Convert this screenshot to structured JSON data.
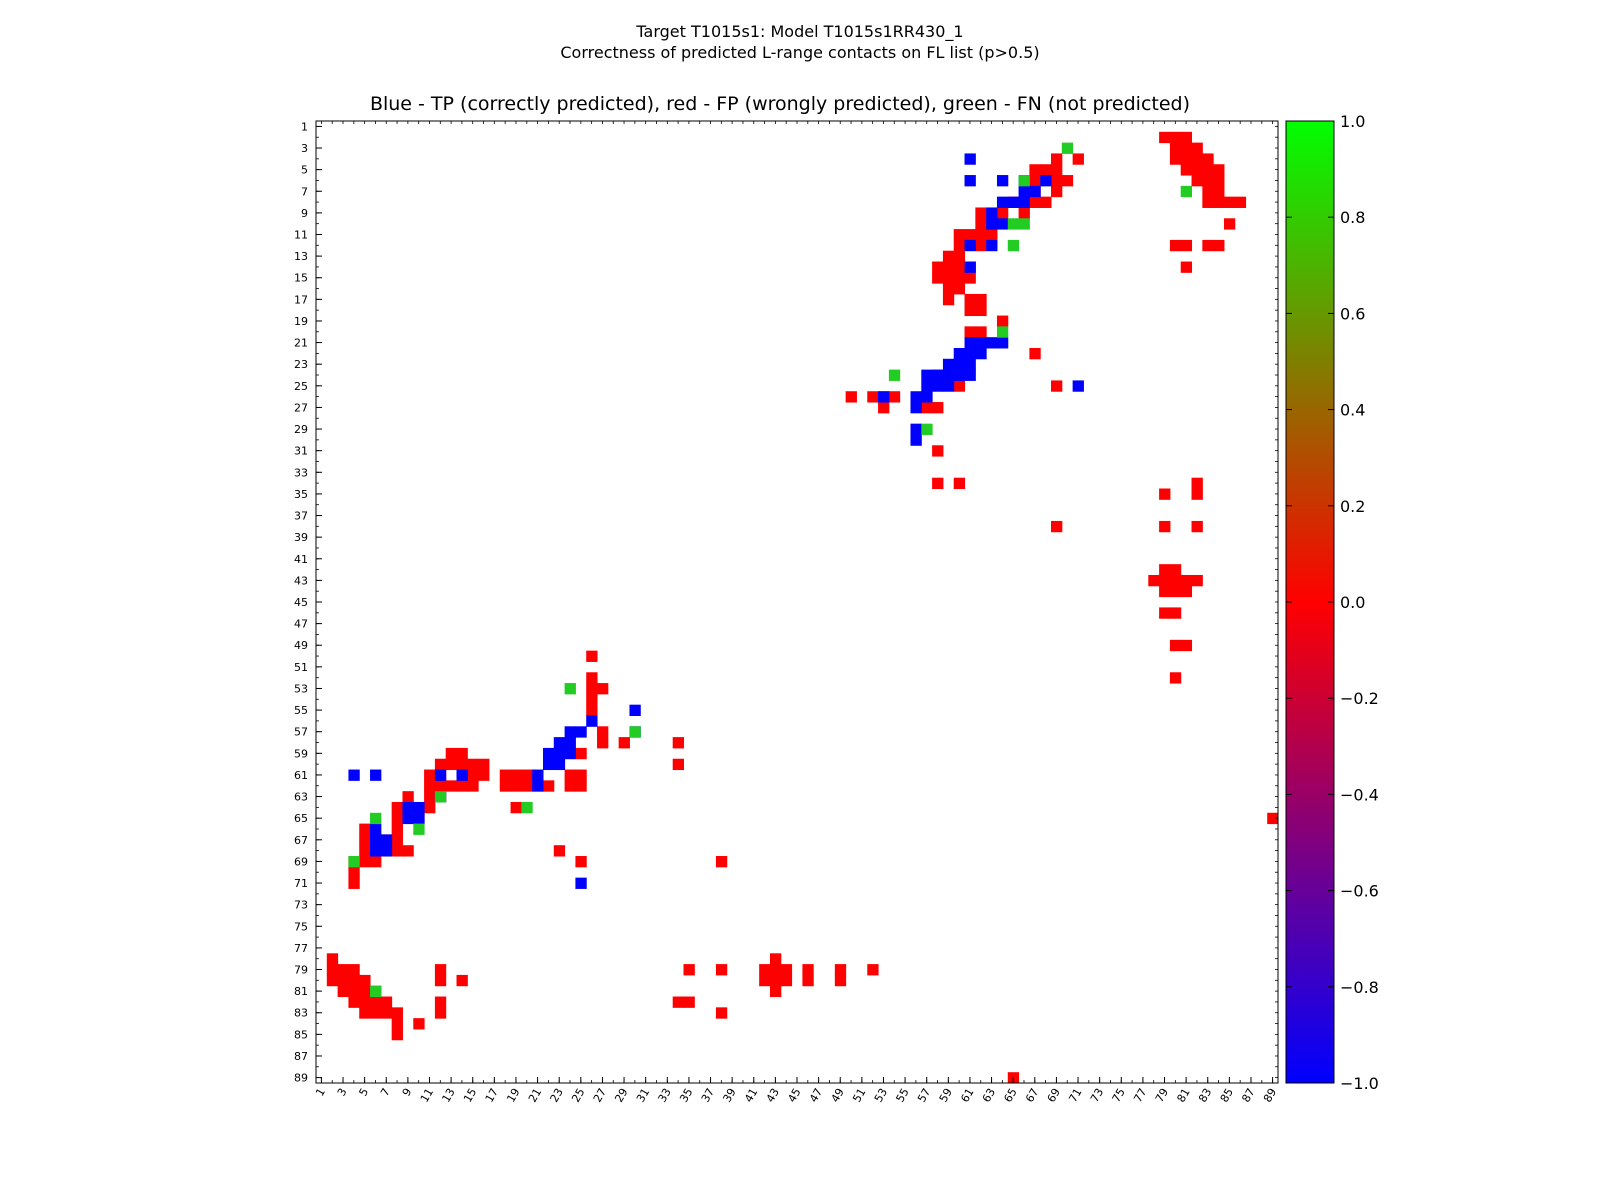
{
  "figure": {
    "suptitle_line1": "Target T1015s1: Model T1015s1RR430_1",
    "suptitle_line2": "Correctness of predicted L-range contacts on FL list (p>0.5)"
  },
  "chart_data": {
    "type": "heatmap",
    "title": "Blue - TP (correctly predicted), red - FP (wrongly predicted), green - FN (not predicted)",
    "xlabel": "",
    "ylabel": "",
    "n": 89,
    "xlim": [
      1,
      89
    ],
    "ylim": [
      1,
      89
    ],
    "x_ticks": [
      "1",
      "3",
      "5",
      "7",
      "9",
      "11",
      "13",
      "15",
      "17",
      "19",
      "21",
      "23",
      "25",
      "27",
      "29",
      "31",
      "33",
      "35",
      "37",
      "39",
      "41",
      "43",
      "45",
      "47",
      "49",
      "51",
      "53",
      "55",
      "57",
      "59",
      "61",
      "63",
      "65",
      "67",
      "69",
      "71",
      "73",
      "75",
      "77",
      "79",
      "81",
      "83",
      "85",
      "87",
      "89"
    ],
    "y_ticks": [
      "1",
      "3",
      "5",
      "7",
      "9",
      "11",
      "13",
      "15",
      "17",
      "19",
      "21",
      "23",
      "25",
      "27",
      "29",
      "31",
      "33",
      "35",
      "37",
      "39",
      "41",
      "43",
      "45",
      "47",
      "49",
      "51",
      "53",
      "55",
      "57",
      "59",
      "61",
      "63",
      "65",
      "67",
      "69",
      "71",
      "73",
      "75",
      "77",
      "79",
      "81",
      "83",
      "85",
      "87",
      "89"
    ],
    "colorbar": {
      "range": [
        -1.0,
        1.0
      ],
      "ticks": [
        "1.0",
        "0.8",
        "0.6",
        "0.4",
        "0.2",
        "0.0",
        "−0.2",
        "−0.4",
        "−0.6",
        "−0.8",
        "−1.0"
      ],
      "colors": [
        "#0000ff",
        "#ff0000",
        "#00ff00"
      ]
    },
    "categories": {
      "TP": {
        "value": -1,
        "color": "#0000ff"
      },
      "FP": {
        "value": 0,
        "color": "#ff0000"
      },
      "FN": {
        "value": 1,
        "color": "#22cc22"
      }
    },
    "FP": [
      [
        2,
        79
      ],
      [
        2,
        80
      ],
      [
        2,
        81
      ],
      [
        3,
        80
      ],
      [
        3,
        81
      ],
      [
        3,
        82
      ],
      [
        4,
        80
      ],
      [
        4,
        81
      ],
      [
        4,
        82
      ],
      [
        4,
        83
      ],
      [
        5,
        81
      ],
      [
        5,
        82
      ],
      [
        5,
        83
      ],
      [
        5,
        84
      ],
      [
        6,
        82
      ],
      [
        6,
        83
      ],
      [
        6,
        84
      ],
      [
        7,
        83
      ],
      [
        7,
        84
      ],
      [
        8,
        83
      ],
      [
        8,
        84
      ],
      [
        8,
        85
      ],
      [
        8,
        86
      ],
      [
        10,
        85
      ],
      [
        12,
        80
      ],
      [
        12,
        81
      ],
      [
        12,
        83
      ],
      [
        12,
        84
      ],
      [
        14,
        81
      ],
      [
        4,
        69
      ],
      [
        4,
        71
      ],
      [
        5,
        67
      ],
      [
        5,
        68
      ],
      [
        5,
        69
      ],
      [
        6,
        67
      ],
      [
        6,
        69
      ],
      [
        6,
        70
      ],
      [
        7,
        67
      ],
      [
        7,
        69
      ],
      [
        8,
        65
      ],
      [
        8,
        67
      ],
      [
        8,
        68
      ],
      [
        9,
        62
      ],
      [
        9,
        63
      ],
      [
        9,
        64
      ],
      [
        9,
        66
      ],
      [
        10,
        62
      ],
      [
        10,
        63
      ],
      [
        11,
        60
      ],
      [
        11,
        61
      ],
      [
        11,
        62
      ],
      [
        11,
        63
      ],
      [
        12,
        60
      ],
      [
        12,
        62
      ],
      [
        13,
        59
      ],
      [
        13,
        60
      ],
      [
        14,
        58
      ],
      [
        14,
        59
      ],
      [
        14,
        60
      ],
      [
        14,
        61
      ],
      [
        15,
        58
      ],
      [
        15,
        59
      ],
      [
        15,
        60
      ],
      [
        15,
        61
      ],
      [
        16,
        59
      ],
      [
        16,
        60
      ],
      [
        17,
        59
      ],
      [
        17,
        61
      ],
      [
        17,
        62
      ],
      [
        18,
        61
      ],
      [
        18,
        62
      ],
      [
        19,
        64
      ],
      [
        20,
        61
      ],
      [
        20,
        62
      ],
      [
        22,
        67
      ],
      [
        23,
        60
      ],
      [
        24,
        58
      ],
      [
        24,
        60
      ],
      [
        25,
        60
      ],
      [
        25,
        69
      ],
      [
        26,
        50
      ],
      [
        26,
        52
      ],
      [
        26,
        53
      ],
      [
        26,
        54
      ],
      [
        27,
        53
      ],
      [
        27,
        57
      ],
      [
        27,
        58
      ],
      [
        31,
        58
      ],
      [
        34,
        58
      ],
      [
        34,
        60
      ],
      [
        35,
        79
      ],
      [
        35,
        82
      ],
      [
        34,
        82
      ],
      [
        38,
        69
      ],
      [
        38,
        79
      ],
      [
        38,
        82
      ],
      [
        42,
        79
      ],
      [
        42,
        80
      ],
      [
        43,
        78
      ],
      [
        43,
        79
      ],
      [
        43,
        80
      ],
      [
        43,
        81
      ],
      [
        43,
        82
      ],
      [
        44,
        79
      ],
      [
        44,
        80
      ],
      [
        44,
        81
      ],
      [
        46,
        79
      ],
      [
        46,
        80
      ],
      [
        49,
        80
      ],
      [
        49,
        81
      ],
      [
        52,
        80
      ],
      [
        50,
        26
      ],
      [
        52,
        26
      ],
      [
        53,
        26
      ],
      [
        53,
        27
      ],
      [
        54,
        26
      ],
      [
        55,
        26
      ],
      [
        57,
        27
      ],
      [
        58,
        27
      ],
      [
        59,
        25
      ],
      [
        58,
        29
      ],
      [
        58,
        34
      ],
      [
        60,
        34
      ],
      [
        59,
        13
      ],
      [
        59,
        14
      ],
      [
        60,
        12
      ],
      [
        60,
        13
      ],
      [
        60,
        14
      ],
      [
        60,
        15
      ],
      [
        60,
        16
      ],
      [
        61,
        11
      ],
      [
        61,
        12
      ],
      [
        61,
        14
      ],
      [
        61,
        15
      ],
      [
        61,
        16
      ],
      [
        61,
        18
      ],
      [
        61,
        19
      ],
      [
        61,
        20
      ],
      [
        62,
        11
      ],
      [
        62,
        12
      ],
      [
        62,
        13
      ],
      [
        62,
        14
      ],
      [
        62,
        15
      ],
      [
        62,
        18
      ],
      [
        62,
        19
      ],
      [
        62,
        20
      ],
      [
        62,
        22
      ],
      [
        62,
        24
      ],
      [
        62,
        25
      ],
      [
        61,
        25
      ],
      [
        61,
        24
      ],
      [
        63,
        9
      ],
      [
        63,
        11
      ],
      [
        63,
        12
      ],
      [
        64,
        8
      ],
      [
        64,
        9
      ],
      [
        64,
        11
      ],
      [
        64,
        19
      ],
      [
        65,
        8
      ],
      [
        65,
        10
      ],
      [
        66,
        5
      ],
      [
        66,
        8
      ],
      [
        67,
        5
      ],
      [
        67,
        6
      ],
      [
        67,
        7
      ],
      [
        67,
        8
      ],
      [
        68,
        5
      ],
      [
        68,
        6
      ],
      [
        68,
        7
      ],
      [
        68,
        8
      ],
      [
        68,
        9
      ],
      [
        68,
        23
      ],
      [
        69,
        4
      ],
      [
        69,
        5
      ],
      [
        69,
        6
      ],
      [
        69,
        25
      ],
      [
        69,
        38
      ],
      [
        70,
        4
      ],
      [
        71,
        4
      ],
      [
        78,
        2
      ],
      [
        79,
        2
      ],
      [
        79,
        3
      ],
      [
        79,
        4
      ],
      [
        80,
        2
      ],
      [
        80,
        3
      ],
      [
        80,
        4
      ],
      [
        80,
        5
      ],
      [
        81,
        3
      ],
      [
        81,
        4
      ],
      [
        81,
        5
      ],
      [
        81,
        6
      ],
      [
        82,
        4
      ],
      [
        82,
        5
      ],
      [
        82,
        6
      ],
      [
        82,
        7
      ],
      [
        83,
        5
      ],
      [
        83,
        6
      ],
      [
        83,
        7
      ],
      [
        83,
        8
      ],
      [
        84,
        8
      ],
      [
        85,
        8
      ],
      [
        79,
        12
      ],
      [
        80,
        12
      ],
      [
        82,
        12
      ],
      [
        83,
        12
      ],
      [
        80,
        14
      ],
      [
        84,
        10
      ],
      [
        79,
        35
      ],
      [
        79,
        38
      ],
      [
        82,
        34
      ],
      [
        82,
        35
      ],
      [
        83,
        38
      ],
      [
        78,
        43
      ],
      [
        79,
        42
      ],
      [
        79,
        43
      ],
      [
        79,
        44
      ],
      [
        80,
        42
      ],
      [
        80,
        43
      ],
      [
        80,
        44
      ],
      [
        81,
        43
      ],
      [
        79,
        46
      ],
      [
        80,
        46
      ],
      [
        79,
        49
      ],
      [
        80,
        49
      ],
      [
        79,
        52
      ],
      [
        65,
        89
      ],
      [
        89,
        65
      ]
    ],
    "TP": [
      [
        4,
        61
      ],
      [
        6,
        61
      ],
      [
        6,
        64
      ],
      [
        6,
        66
      ],
      [
        6,
        68
      ],
      [
        7,
        66
      ],
      [
        7,
        67
      ],
      [
        8,
        64
      ],
      [
        8,
        65
      ],
      [
        8,
        66
      ],
      [
        9,
        63
      ],
      [
        10,
        63
      ],
      [
        10,
        64
      ],
      [
        12,
        61
      ],
      [
        12,
        63
      ],
      [
        14,
        61
      ],
      [
        21,
        61
      ],
      [
        21,
        62
      ],
      [
        21,
        63
      ],
      [
        21,
        64
      ],
      [
        22,
        60
      ],
      [
        22,
        61
      ],
      [
        22,
        62
      ],
      [
        23,
        59
      ],
      [
        23,
        60
      ],
      [
        23,
        61
      ],
      [
        24,
        57
      ],
      [
        24,
        58
      ],
      [
        24,
        59
      ],
      [
        24,
        60
      ],
      [
        24,
        61
      ],
      [
        25,
        57
      ],
      [
        25,
        58
      ],
      [
        25,
        59
      ],
      [
        25,
        71
      ],
      [
        26,
        53
      ],
      [
        26,
        56
      ],
      [
        26,
        57
      ],
      [
        27,
        56
      ],
      [
        30,
        56
      ],
      [
        61,
        4
      ],
      [
        61,
        6
      ],
      [
        62,
        21
      ],
      [
        61,
        21
      ],
      [
        60,
        22
      ],
      [
        60,
        23
      ],
      [
        59,
        22
      ],
      [
        59,
        23
      ],
      [
        59,
        24
      ],
      [
        58,
        23
      ],
      [
        58,
        24
      ],
      [
        57,
        24
      ],
      [
        57,
        25
      ],
      [
        56,
        26
      ],
      [
        55,
        30
      ],
      [
        57,
        30
      ],
      [
        61,
        12
      ],
      [
        61,
        14
      ],
      [
        63,
        12
      ],
      [
        64,
        9
      ],
      [
        64,
        10
      ],
      [
        65,
        9
      ],
      [
        65,
        10
      ],
      [
        66,
        6
      ],
      [
        67,
        6
      ],
      [
        68,
        6
      ],
      [
        67,
        7
      ],
      [
        68,
        7
      ],
      [
        71,
        25
      ],
      [
        29,
        56
      ]
    ],
    "FN": [
      [
        3,
        70
      ],
      [
        6,
        66
      ],
      [
        10,
        65
      ],
      [
        10,
        66
      ],
      [
        12,
        65
      ],
      [
        20,
        64
      ],
      [
        24,
        54
      ],
      [
        29,
        57
      ],
      [
        53,
        24
      ],
      [
        57,
        30
      ],
      [
        63,
        12
      ],
      [
        65,
        6
      ],
      [
        66,
        10
      ],
      [
        69,
        4
      ],
      [
        64,
        20
      ],
      [
        81,
        6
      ],
      [
        7,
        81
      ]
    ]
  }
}
